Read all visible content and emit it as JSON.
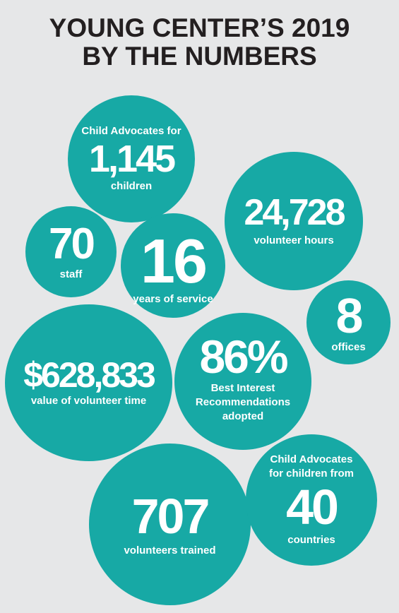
{
  "title": {
    "line1": "YOUNG CENTER’S 2019",
    "line2": "BY THE NUMBERS"
  },
  "stats": {
    "children": {
      "pre": "Child Advocates for",
      "value": "1,145",
      "post": "children"
    },
    "volunteer_hours": {
      "value": "24,728",
      "post": "volunteer hours"
    },
    "staff": {
      "value": "70",
      "post": "staff"
    },
    "years": {
      "value": "16",
      "post": "years of service"
    },
    "offices": {
      "value": "8",
      "post": "offices"
    },
    "volunteer_value": {
      "value": "$628,833",
      "post": "value of volunteer time"
    },
    "recommendations": {
      "value": "86%",
      "post1": "Best Interest",
      "post2": "Recommendations",
      "post3": "adopted"
    },
    "trained": {
      "value": "707",
      "post": "volunteers trained"
    },
    "countries": {
      "pre1": "Child Advocates",
      "pre2": "for children from",
      "value": "40",
      "post": "countries"
    }
  },
  "colors": {
    "circle": "#17a9a5",
    "background": "#e6e7e8",
    "title": "#231f20"
  }
}
